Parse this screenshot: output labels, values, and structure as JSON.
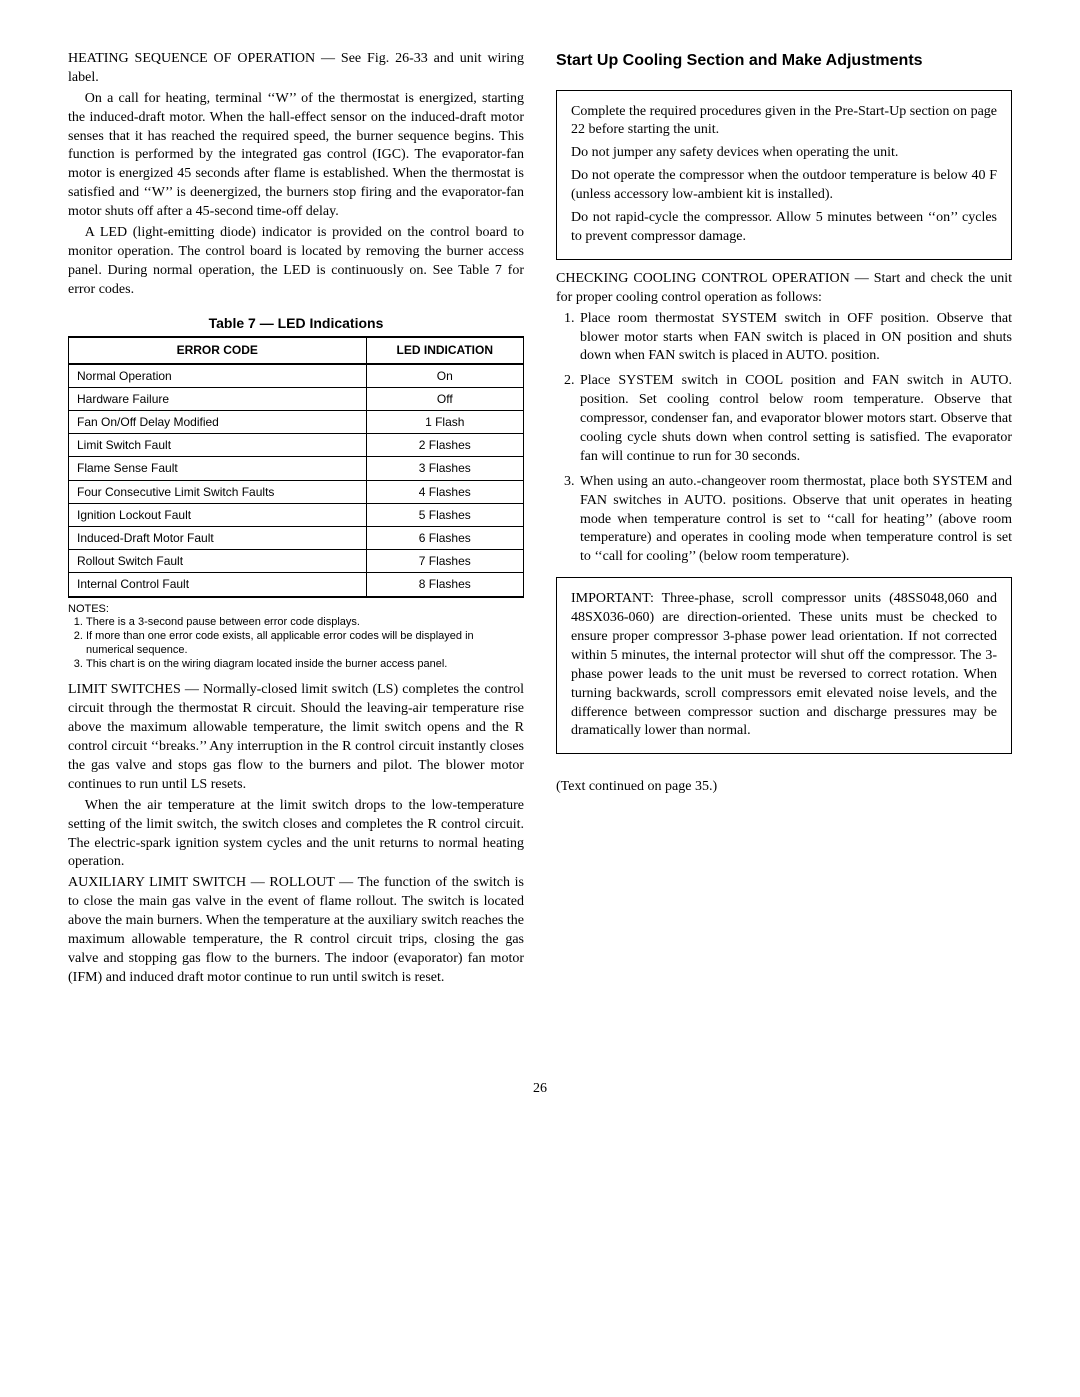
{
  "leftCol": {
    "p1": "HEATING SEQUENCE OF OPERATION — See Fig. 26-33 and unit wiring label.",
    "p2": "On a call for heating, terminal ‘‘W’’ of the thermostat is energized, starting the induced-draft motor. When the hall-effect sensor on the induced-draft motor senses that it has reached the required speed, the burner sequence begins. This function is performed by the integrated gas control (IGC). The evaporator-fan motor is energized 45 seconds after flame is established. When the thermostat is satisfied and ‘‘W’’ is deenergized, the burners stop firing and the evaporator-fan motor shuts off after a 45-second time-off delay.",
    "p3": "A LED (light-emitting diode) indicator is provided on the control board to monitor operation. The control board is located by removing the burner access panel. During normal operation, the LED is continuously on. See Table 7 for error codes.",
    "tableCaption": "Table 7 — LED Indications",
    "tableHeaders": [
      "ERROR CODE",
      "LED INDICATION"
    ],
    "tableRows": [
      [
        "Normal Operation",
        "On"
      ],
      [
        "Hardware Failure",
        "Off"
      ],
      [
        "Fan On/Off Delay Modified",
        "1 Flash"
      ],
      [
        "Limit Switch Fault",
        "2 Flashes"
      ],
      [
        "Flame Sense Fault",
        "3 Flashes"
      ],
      [
        "Four Consecutive Limit Switch Faults",
        "4 Flashes"
      ],
      [
        "Ignition Lockout Fault",
        "5 Flashes"
      ],
      [
        "Induced-Draft Motor Fault",
        "6 Flashes"
      ],
      [
        "Rollout Switch Fault",
        "7 Flashes"
      ],
      [
        "Internal Control Fault",
        "8 Flashes"
      ]
    ],
    "notesTitle": "NOTES:",
    "notes": [
      "There is a 3-second pause between error code displays.",
      "If more than one error code exists, all applicable error codes will be displayed in numerical sequence.",
      "This chart is on the wiring diagram located inside the burner access panel."
    ],
    "p4": "LIMIT SWITCHES — Normally-closed limit switch (LS) completes the control circuit through the thermostat R circuit. Should the leaving-air temperature rise above the maximum allowable temperature, the limit switch opens and the R control circuit ‘‘breaks.’’ Any interruption in the R control circuit instantly closes the gas valve and stops gas flow to the burners and pilot. The blower motor continues to run until LS resets.",
    "p5": "When the air temperature at the limit switch drops to the low-temperature setting of the limit switch, the switch closes and completes the R control circuit. The electric-spark ignition system cycles and the unit returns to normal heating operation.",
    "p6": "AUXILIARY LIMIT SWITCH — ROLLOUT — The function of the switch is to close the main gas valve in the event of flame rollout. The switch is located above the main burners. When the temperature at the auxiliary switch reaches the maximum allowable temperature, the R control circuit trips, closing the gas valve and stopping gas flow to the burners. The indoor (evaporator) fan motor (IFM) and induced draft motor continue to run until switch is reset."
  },
  "rightCol": {
    "heading": "Start Up Cooling Section and Make Adjustments",
    "box1": {
      "p1": "Complete the required procedures given in the Pre-Start-Up section on page 22 before starting the unit.",
      "p2": "Do not jumper any safety devices when operating the unit.",
      "p3": "Do not operate the compressor when the outdoor temperature is below 40 F (unless accessory low-ambient kit is installed).",
      "p4": "Do not rapid-cycle the compressor. Allow 5 minutes between ‘‘on’’ cycles to prevent compressor damage."
    },
    "pIntro": "CHECKING COOLING CONTROL OPERATION — Start and check the unit for proper cooling control operation as follows:",
    "steps": [
      "Place room thermostat SYSTEM switch in OFF position. Observe that blower motor starts when FAN switch is placed in ON position and shuts down when FAN switch is placed in AUTO. position.",
      "Place SYSTEM switch in COOL position and FAN switch in AUTO. position. Set cooling control below room temperature. Observe that compressor, condenser fan, and evaporator blower motors start. Observe that cooling cycle shuts down when control setting is satisfied. The evaporator fan will continue to run for 30 seconds.",
      "When using an auto.-changeover room thermostat, place both SYSTEM and FAN switches in AUTO. positions. Observe that unit operates in heating mode when temperature control is set to ‘‘call for heating’’ (above room temperature) and operates in cooling mode when temperature control is set to ‘‘call for cooling’’ (below room temperature)."
    ],
    "box2": "IMPORTANT: Three-phase, scroll compressor units (48SS048,060 and 48SX036-060) are direction-oriented. These units must be checked to ensure proper compressor 3-phase power lead orientation. If not corrected within 5 minutes, the internal protector will shut off the compressor. The 3-phase power leads to the unit must be reversed to correct rotation. When turning backwards, scroll compressors emit elevated noise levels, and the difference between compressor suction and discharge pressures may be dramatically lower than normal.",
    "continued": "(Text continued on page 35.)"
  },
  "pageNumber": "26"
}
